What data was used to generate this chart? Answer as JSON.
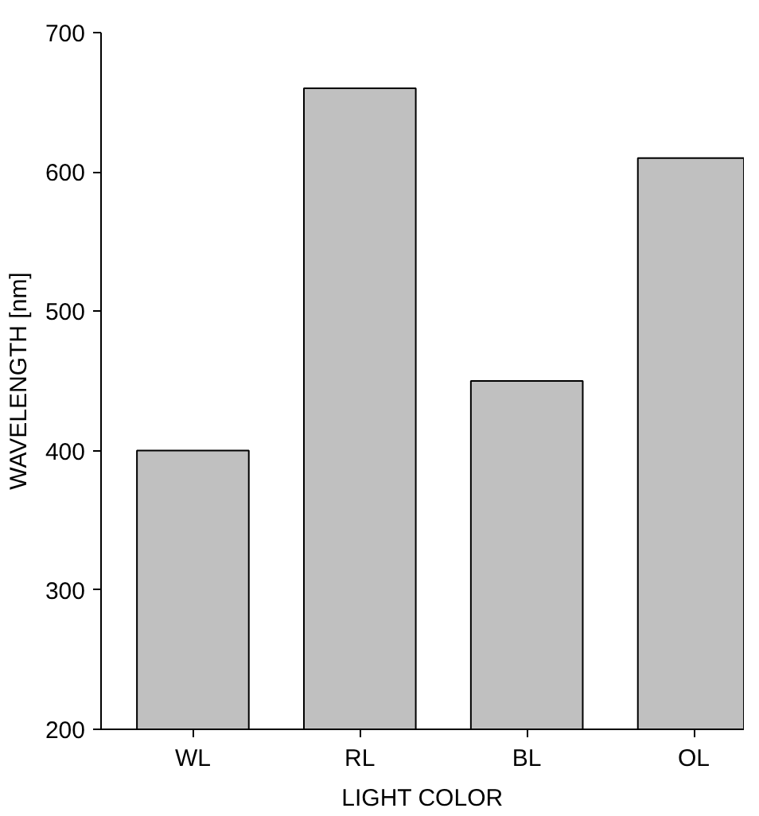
{
  "chart_data": {
    "type": "bar",
    "xlabel": "LIGHT COLOR",
    "ylabel": "WAVELENGTH [nm]",
    "categories": [
      "WL",
      "RL",
      "BL",
      "OL"
    ],
    "values": [
      400,
      660,
      450,
      610
    ],
    "color": "#c0c0c0",
    "ylim": [
      200,
      700
    ],
    "yticks": [
      200,
      300,
      400,
      500,
      600,
      700
    ],
    "grid": false
  }
}
